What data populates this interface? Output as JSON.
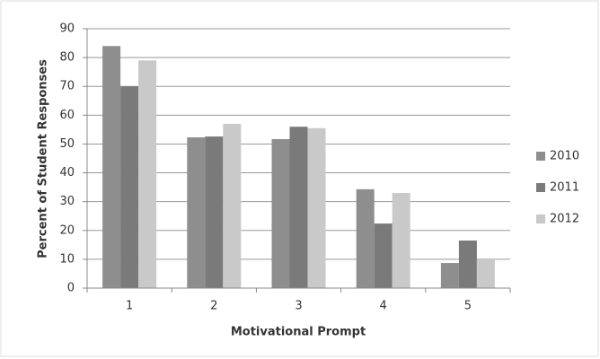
{
  "chart_data": {
    "type": "bar",
    "x_label": "Motivational Prompt",
    "y_label": "Percent of Student Responses",
    "categories": [
      "1",
      "2",
      "3",
      "4",
      "5"
    ],
    "series": [
      {
        "name": "2010",
        "color": "#8e8e8e",
        "values": [
          84,
          52.3,
          51.7,
          34.3,
          8.7
        ]
      },
      {
        "name": "2011",
        "color": "#7a7a7a",
        "values": [
          70,
          52.6,
          56,
          22.4,
          16.5
        ]
      },
      {
        "name": "2012",
        "color": "#c9c9c9",
        "values": [
          79,
          57,
          55.5,
          33,
          10
        ]
      }
    ],
    "ylim": [
      0,
      90
    ],
    "yticks": [
      0,
      10,
      20,
      30,
      40,
      50,
      60,
      70,
      80,
      90
    ],
    "grid": true,
    "legend": "right"
  }
}
